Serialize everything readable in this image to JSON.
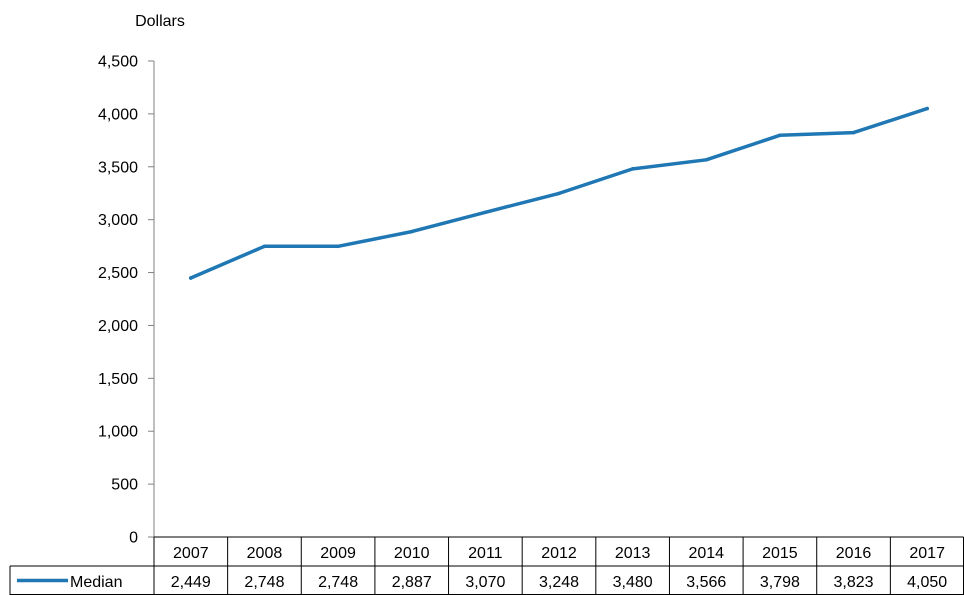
{
  "chart_data": {
    "type": "line",
    "ylabel": "Dollars",
    "xlabel": "",
    "categories": [
      "2007",
      "2008",
      "2009",
      "2010",
      "2011",
      "2012",
      "2013",
      "2014",
      "2015",
      "2016",
      "2017"
    ],
    "series": [
      {
        "name": "Median",
        "color": "#1f77b4",
        "values": [
          2449,
          2748,
          2748,
          2887,
          3070,
          3248,
          3480,
          3566,
          3798,
          3823,
          4050
        ],
        "value_labels": [
          "2,449",
          "2,748",
          "2,748",
          "2,887",
          "3,070",
          "3,248",
          "3,480",
          "3,566",
          "3,798",
          "3,823",
          "4,050"
        ]
      }
    ],
    "ylim": [
      0,
      4500
    ],
    "y_ticks": [
      0,
      500,
      1000,
      1500,
      2000,
      2500,
      3000,
      3500,
      4000,
      4500
    ],
    "y_tick_labels": [
      "0",
      "500",
      "1,000",
      "1,500",
      "2,000",
      "2,500",
      "3,000",
      "3,500",
      "4,000",
      "4,500"
    ],
    "grid": false,
    "legend": "data table"
  }
}
